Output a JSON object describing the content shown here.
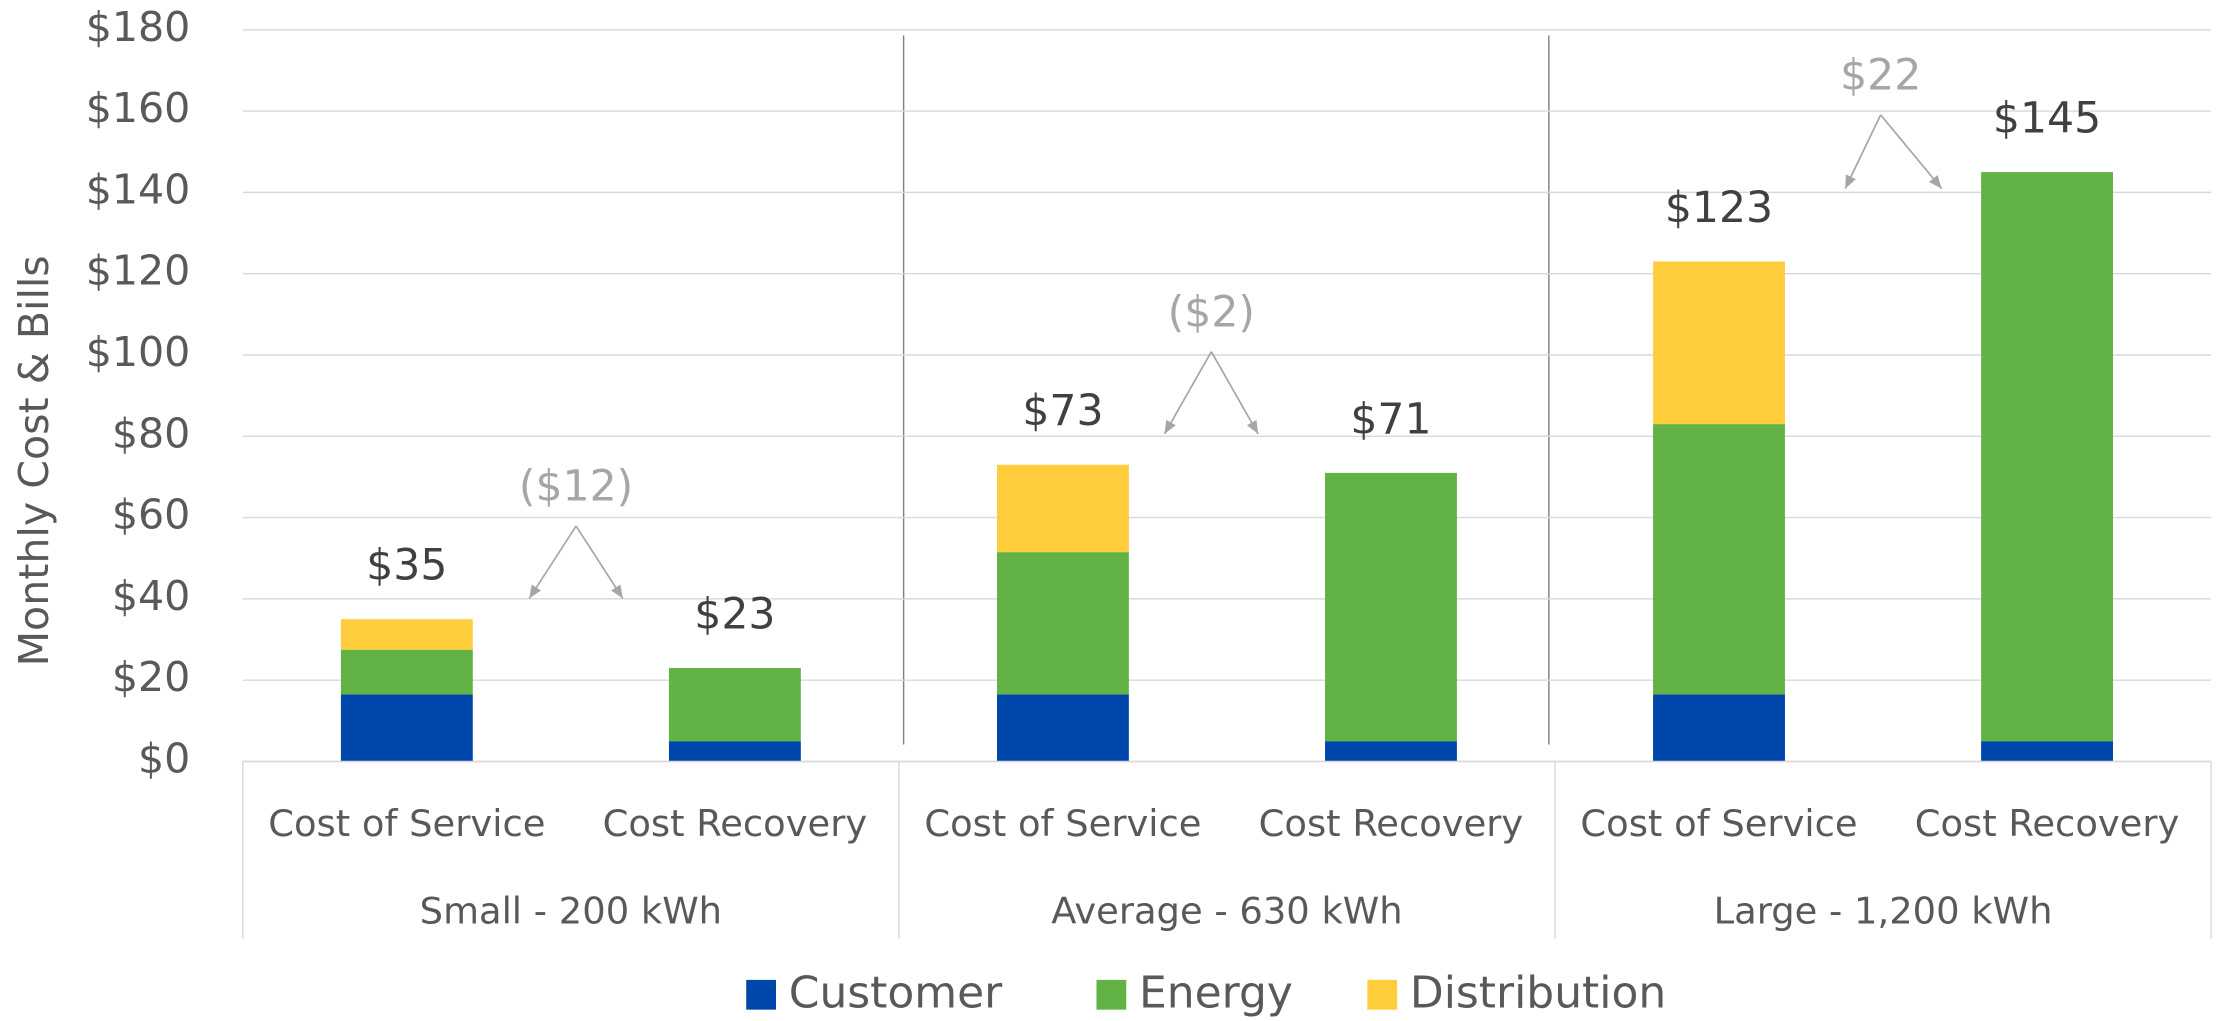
{
  "chart_data": {
    "type": "stacked_bar",
    "y_label": "Monthly Cost & Bills",
    "categories": [
      "Cost of Service",
      "Cost Recovery",
      "Cost of Service",
      "Cost Recovery",
      "Cost of Service",
      "Cost Recovery"
    ],
    "groups": [
      "Small - 200 kWh",
      "Average - 630 kWh",
      "Large - 1,200 kWh"
    ],
    "series": [
      {
        "name": "Customer",
        "color": "#0047ab",
        "values": [
          16.5,
          5,
          16.5,
          5,
          16.5,
          5
        ]
      },
      {
        "name": "Energy",
        "color": "#62b246",
        "values": [
          11,
          18,
          35,
          66,
          66.5,
          140
        ]
      },
      {
        "name": "Distribution",
        "color": "#ffcd3c",
        "values": [
          7.5,
          null,
          21.5,
          null,
          40,
          null
        ]
      }
    ],
    "totals": {
      "values": [
        35,
        23,
        73,
        71,
        123,
        145
      ],
      "value_labels": [
        "$35",
        "$23",
        "$73",
        "$71",
        "$123",
        "$145"
      ]
    },
    "annotations": [
      "($12)",
      "($2)",
      "$22"
    ],
    "ylim": [
      0,
      180
    ],
    "yticks": [
      {
        "value": 0,
        "label": "$0"
      },
      {
        "value": 20,
        "label": "$20"
      },
      {
        "value": 40,
        "label": "$40"
      },
      {
        "value": 60,
        "label": "$60"
      },
      {
        "value": 80,
        "label": "$80"
      },
      {
        "value": 100,
        "label": "$100"
      },
      {
        "value": 120,
        "label": "$120"
      },
      {
        "value": 140,
        "label": "$140"
      },
      {
        "value": 160,
        "label": "$160"
      },
      {
        "value": 180,
        "label": "$180"
      }
    ],
    "grid": true,
    "legend": "bottom"
  }
}
